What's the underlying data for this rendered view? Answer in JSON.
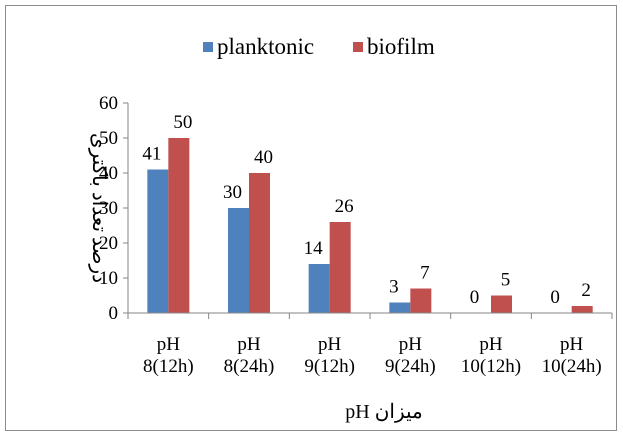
{
  "chart_data": {
    "type": "bar",
    "title": "",
    "xlabel": "میزان pH",
    "ylabel": "درصد تعداد باکتری",
    "ylim": [
      0,
      60
    ],
    "yticks": [
      0,
      10,
      20,
      30,
      40,
      50,
      60
    ],
    "categories": [
      [
        "pH",
        "8(12h)"
      ],
      [
        "pH",
        "8(24h)"
      ],
      [
        "pH",
        "9(12h)"
      ],
      [
        "pH",
        "9(24h)"
      ],
      [
        "pH",
        "10(12h)"
      ],
      [
        "pH",
        "10(24h)"
      ]
    ],
    "series": [
      {
        "name": "planktonic",
        "color": "#4f81bd",
        "values": [
          41,
          30,
          14,
          3,
          0,
          0
        ]
      },
      {
        "name": "biofilm",
        "color": "#c0504d",
        "values": [
          50,
          40,
          26,
          7,
          5,
          2
        ]
      }
    ],
    "legend": "top",
    "grid": false
  }
}
